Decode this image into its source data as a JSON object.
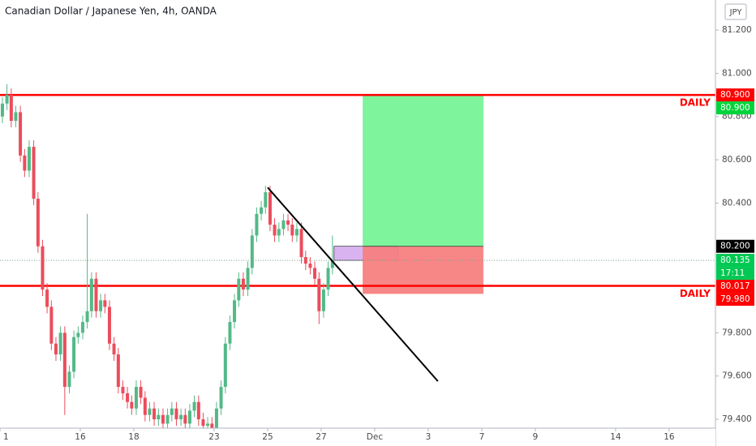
{
  "chart_data": {
    "type": "candlestick",
    "title": "Canadian Dollar / Japanese Yen, 4h, OANDA",
    "currency": "JPY",
    "up_color": "#53b987",
    "down_color": "#eb4d5c",
    "xlim": [
      0,
      26.73
    ],
    "ylim": [
      79.359,
      81.339
    ],
    "xticks": [
      {
        "value": 0,
        "label": "1"
      },
      {
        "value": 3,
        "label": "16"
      },
      {
        "value": 5,
        "label": "18"
      },
      {
        "value": 8,
        "label": "23"
      },
      {
        "value": 10,
        "label": "25"
      },
      {
        "value": 12,
        "label": "27"
      },
      {
        "value": 14,
        "label": "Dec"
      },
      {
        "value": 16,
        "label": "3"
      },
      {
        "value": 18,
        "label": "7"
      },
      {
        "value": 20,
        "label": "9"
      },
      {
        "value": 23,
        "label": "14"
      },
      {
        "value": 25,
        "label": "16"
      }
    ],
    "yticks": [
      {
        "value": 81.2,
        "label": "81.200"
      },
      {
        "value": 81.0,
        "label": "81.000"
      },
      {
        "value": 80.8,
        "label": "80.800"
      },
      {
        "value": 80.6,
        "label": "80.600"
      },
      {
        "value": 80.4,
        "label": "80.400"
      },
      {
        "value": 79.8,
        "label": "79.800"
      },
      {
        "value": 79.6,
        "label": "79.600"
      },
      {
        "value": 79.4,
        "label": "79.400"
      }
    ],
    "x": [
      0.09,
      0.26,
      0.42,
      0.59,
      0.76,
      0.92,
      1.09,
      1.26,
      1.42,
      1.59,
      1.76,
      1.92,
      2.09,
      2.26,
      2.42,
      2.59,
      2.76,
      2.92,
      3.09,
      3.26,
      3.42,
      3.59,
      3.76,
      3.92,
      4.09,
      4.26,
      4.42,
      4.59,
      4.76,
      4.92,
      5.09,
      5.26,
      5.42,
      5.59,
      5.76,
      5.92,
      6.09,
      6.26,
      6.42,
      6.59,
      6.76,
      6.92,
      7.09,
      7.26,
      7.42,
      7.59,
      7.76,
      7.92,
      8.09,
      8.26,
      8.42,
      8.59,
      8.76,
      8.92,
      9.09,
      9.26,
      9.42,
      9.59,
      9.76,
      9.92,
      10.09,
      10.26,
      10.42,
      10.59,
      10.76,
      10.92,
      11.09,
      11.26,
      11.42,
      11.59,
      11.76,
      11.92,
      12.09,
      12.26,
      12.42
    ],
    "open": [
      80.8,
      80.86,
      80.9,
      80.78,
      80.82,
      80.62,
      80.55,
      80.66,
      80.42,
      80.2,
      80.0,
      79.92,
      79.75,
      79.7,
      79.8,
      79.55,
      79.62,
      79.78,
      79.8,
      79.85,
      79.9,
      80.05,
      79.9,
      79.95,
      79.92,
      79.75,
      79.7,
      79.55,
      79.52,
      79.48,
      79.45,
      79.55,
      79.5,
      79.42,
      79.45,
      79.4,
      79.42,
      79.38,
      79.42,
      79.45,
      79.4,
      79.42,
      79.38,
      79.44,
      79.48,
      79.4,
      79.37,
      79.38,
      79.36,
      79.45,
      79.55,
      79.75,
      79.85,
      79.95,
      80.05,
      80.0,
      80.1,
      80.25,
      80.35,
      80.38,
      80.45,
      80.3,
      80.25,
      80.28,
      80.32,
      80.3,
      80.25,
      80.28,
      80.15,
      80.12,
      80.1,
      80.05,
      79.9,
      80.0,
      80.1
    ],
    "high": [
      80.89,
      80.95,
      80.93,
      80.85,
      80.85,
      80.65,
      80.69,
      80.69,
      80.45,
      80.23,
      80.03,
      79.95,
      79.78,
      79.83,
      79.83,
      79.65,
      79.81,
      79.83,
      79.88,
      80.35,
      80.08,
      80.08,
      79.98,
      79.98,
      79.95,
      79.78,
      79.73,
      79.58,
      79.55,
      79.51,
      79.58,
      79.58,
      79.53,
      79.48,
      79.48,
      79.45,
      79.45,
      79.45,
      79.48,
      79.48,
      79.45,
      79.45,
      79.47,
      79.51,
      79.51,
      79.43,
      79.41,
      79.41,
      79.48,
      79.58,
      79.78,
      79.88,
      79.98,
      80.08,
      80.08,
      80.13,
      80.28,
      80.38,
      80.41,
      80.48,
      80.48,
      80.33,
      80.31,
      80.35,
      80.35,
      80.33,
      80.31,
      80.31,
      80.18,
      80.15,
      80.13,
      80.08,
      80.03,
      80.13,
      80.25
    ],
    "low": [
      80.77,
      80.83,
      80.75,
      80.75,
      80.59,
      80.52,
      80.52,
      80.39,
      80.17,
      79.97,
      79.89,
      79.72,
      79.67,
      79.67,
      79.42,
      79.52,
      79.59,
      79.75,
      79.77,
      79.82,
      79.87,
      79.87,
      79.87,
      79.89,
      79.72,
      79.67,
      79.52,
      79.49,
      79.45,
      79.42,
      79.42,
      79.47,
      79.39,
      79.39,
      79.37,
      79.37,
      79.35,
      79.35,
      79.39,
      79.37,
      79.37,
      79.35,
      79.35,
      79.41,
      79.37,
      79.34,
      79.34,
      79.33,
      79.33,
      79.42,
      79.52,
      79.72,
      79.82,
      79.92,
      79.97,
      79.97,
      80.07,
      80.22,
      80.32,
      80.35,
      80.27,
      80.22,
      80.22,
      80.25,
      80.27,
      80.22,
      80.22,
      80.12,
      80.09,
      80.07,
      80.02,
      79.84,
      79.87,
      79.97,
      80.07
    ],
    "close": [
      80.86,
      80.9,
      80.78,
      80.82,
      80.62,
      80.55,
      80.66,
      80.42,
      80.2,
      80.0,
      79.92,
      79.75,
      79.7,
      79.8,
      79.55,
      79.62,
      79.78,
      79.8,
      79.85,
      79.9,
      80.05,
      79.9,
      79.95,
      79.92,
      79.75,
      79.7,
      79.55,
      79.52,
      79.48,
      79.45,
      79.55,
      79.5,
      79.42,
      79.45,
      79.4,
      79.42,
      79.38,
      79.42,
      79.45,
      79.4,
      79.42,
      79.38,
      79.44,
      79.48,
      79.4,
      79.37,
      79.38,
      79.36,
      79.45,
      79.55,
      79.75,
      79.85,
      79.95,
      80.05,
      80.0,
      80.1,
      80.25,
      80.35,
      80.38,
      80.45,
      80.3,
      80.25,
      80.28,
      80.32,
      80.3,
      80.25,
      80.28,
      80.15,
      80.12,
      80.1,
      80.05,
      79.9,
      80.0,
      80.1,
      80.135
    ],
    "levels": [
      {
        "value": 80.9,
        "label": "DAILY",
        "color": "#ff0000"
      },
      {
        "value": 80.017,
        "label": "DAILY",
        "color": "#ff0000"
      }
    ],
    "position": {
      "x": [
        13.55,
        18.06
      ],
      "target": 80.9,
      "entry": 80.2,
      "stop": 79.98,
      "target_color": "#7ef49c",
      "stop_color": "#f78080"
    },
    "zone": {
      "x": [
        12.48,
        14.88
      ],
      "y": [
        80.2,
        80.135
      ],
      "color": "#d9b3f0"
    },
    "trendline": {
      "x": [
        10.0,
        16.36
      ],
      "y": [
        80.472,
        79.576
      ],
      "color": "#000000"
    },
    "last_price": 80.135,
    "countdown": "17:11",
    "price_tags": [
      {
        "value": 80.9,
        "label": "80.900",
        "color": "#ff0000"
      },
      {
        "value": 80.9,
        "label": "80.900",
        "color": "#00d43a"
      },
      {
        "value": 80.2,
        "label": "80.200",
        "color": "#000000"
      },
      {
        "value": 80.135,
        "label": "80.135",
        "color": "#00c853"
      },
      {
        "value": 80.017,
        "label": "80.017",
        "color": "#ff0000"
      },
      {
        "value": 79.98,
        "label": "79.980",
        "color": "#ff0000"
      }
    ]
  }
}
